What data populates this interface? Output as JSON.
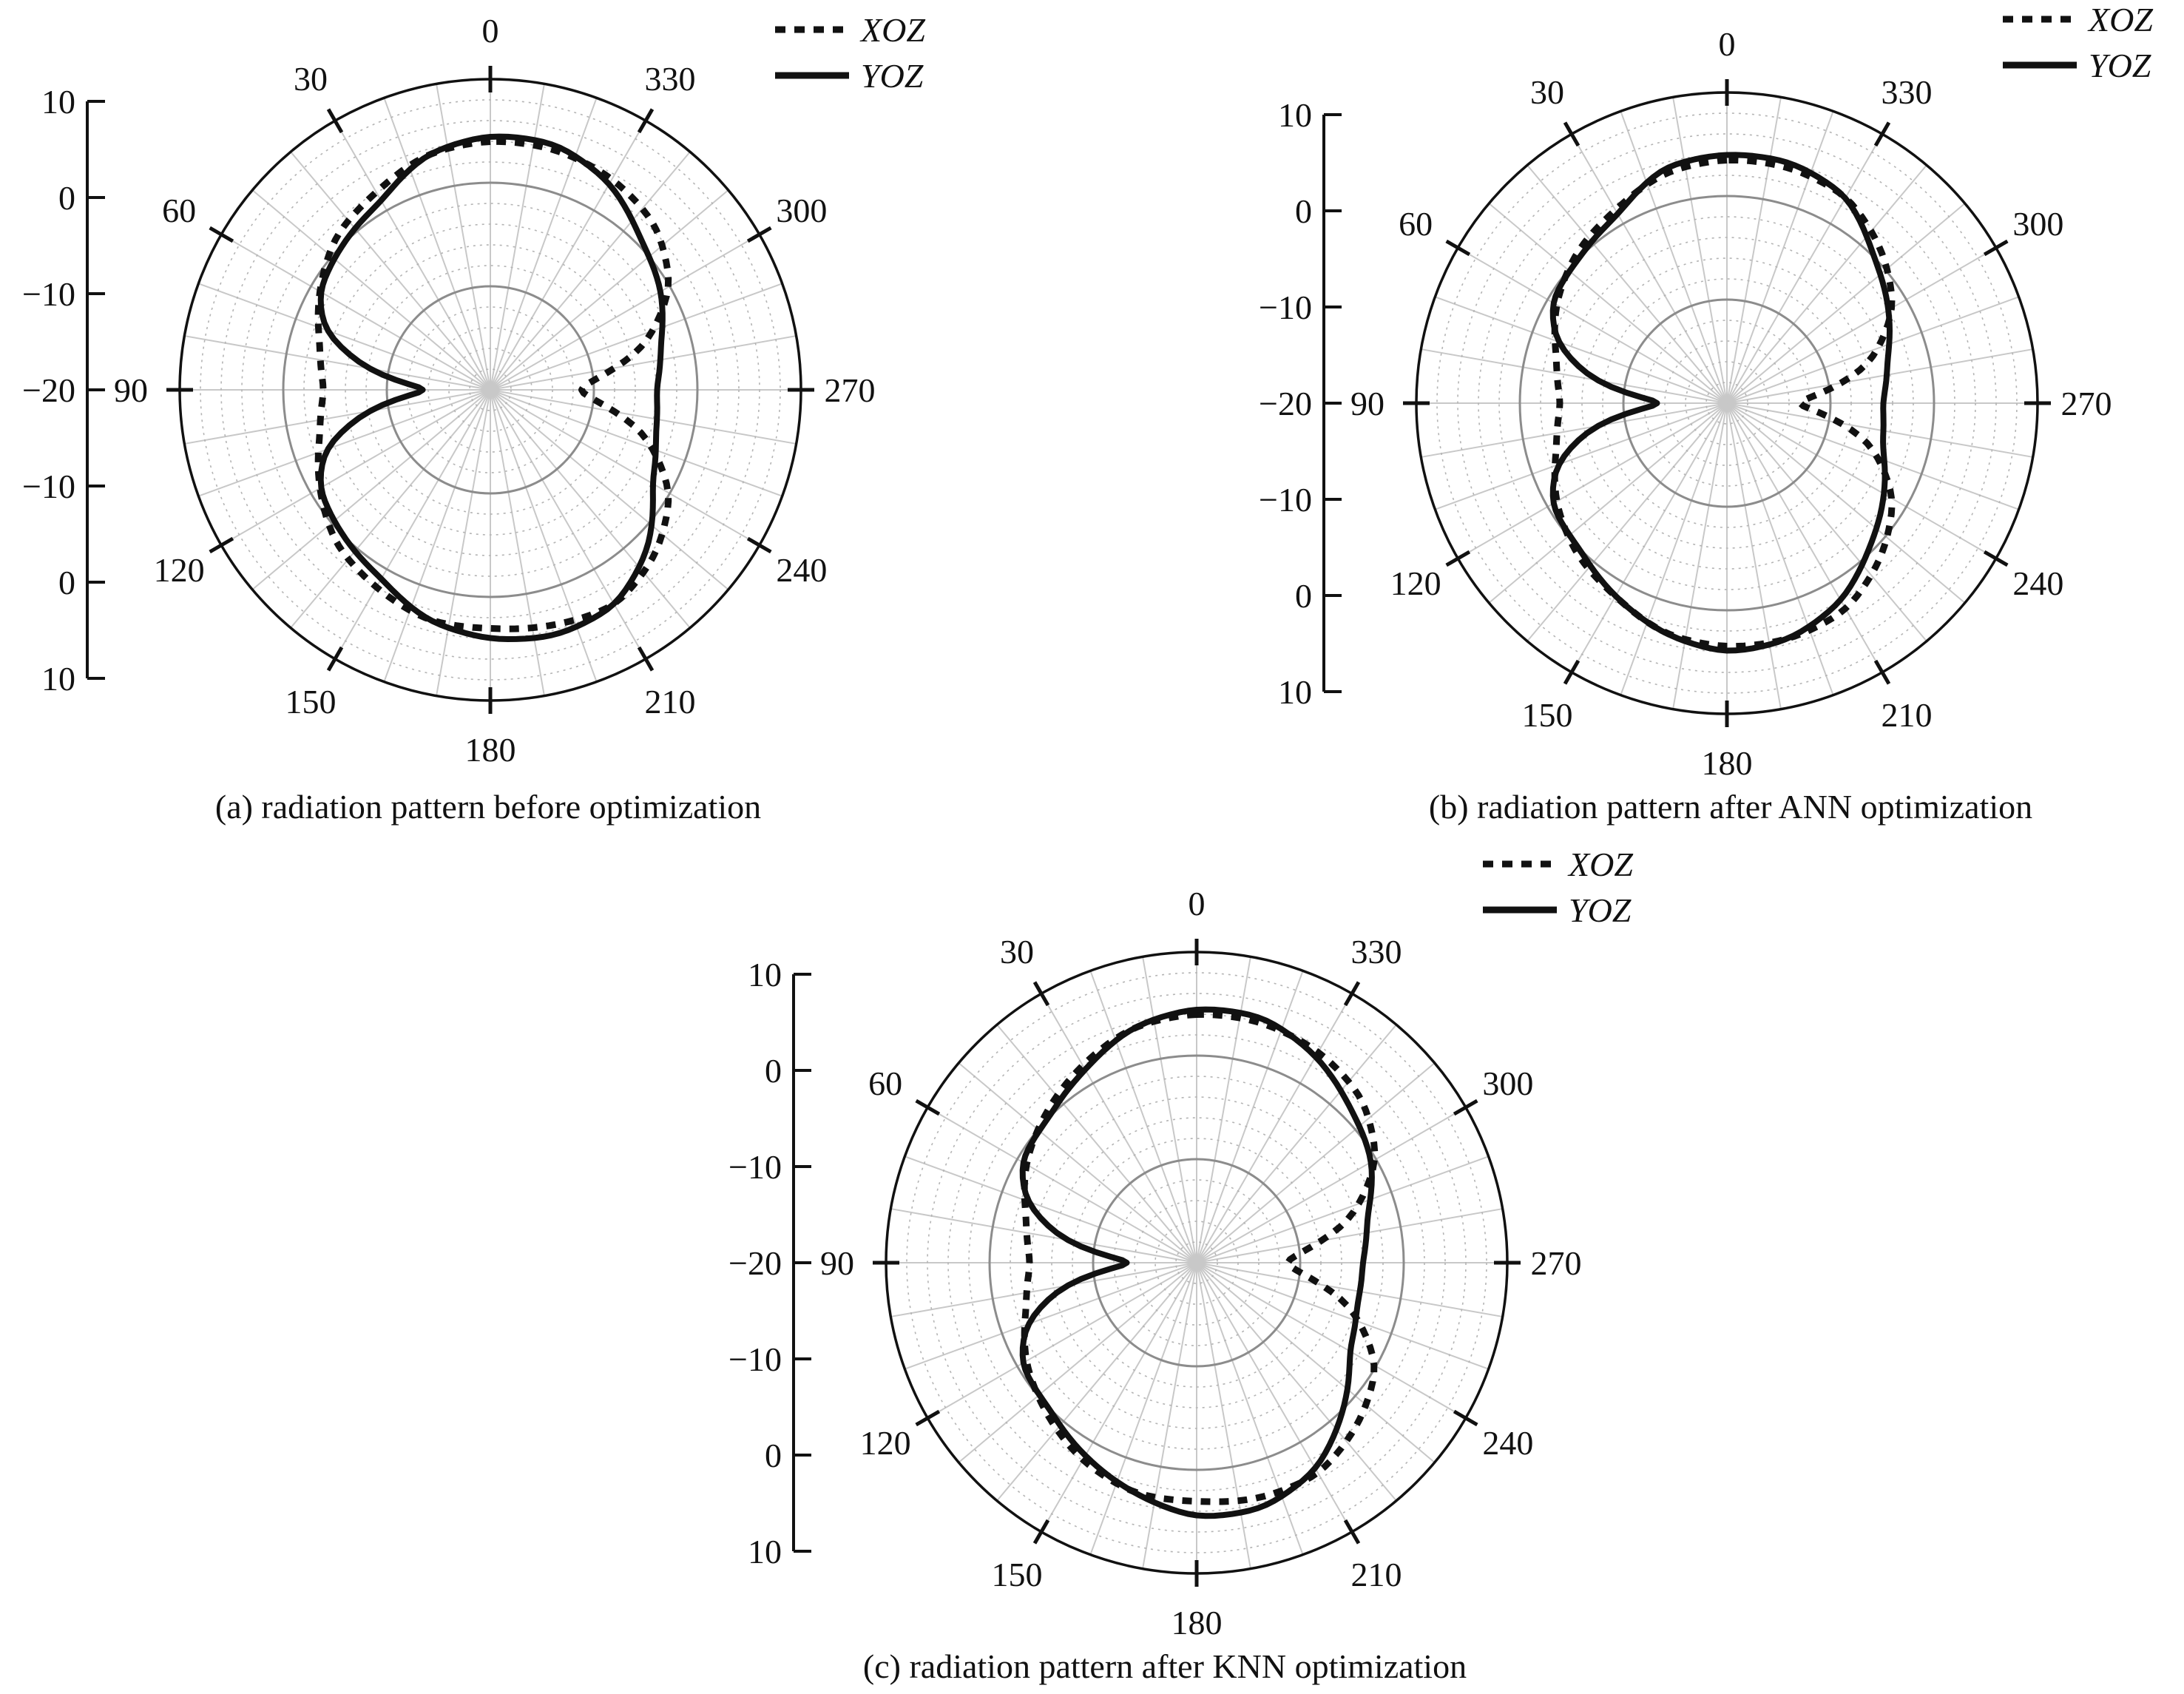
{
  "legend_names": {
    "XOZ": "XOZ",
    "YOZ": "YOZ"
  },
  "colors": {
    "curve": "#111111",
    "ring_major": "#8c8c8c",
    "ring_minor": "#b4b4b4",
    "spoke": "#c8c8c8"
  },
  "chart_data": [
    {
      "id": "a",
      "type": "polar-line",
      "caption": "(a) radiation pattern before optimization",
      "angle_labels": [
        "0",
        "30",
        "60",
        "90",
        "120",
        "150",
        "180",
        "210",
        "240",
        "270",
        "300",
        "330"
      ],
      "radial_axis_labels": [
        "10",
        "0",
        "−10",
        "−20",
        "−10",
        "0",
        "10"
      ],
      "rlim": [
        -20,
        10
      ],
      "angle_direction": "counterclockwise-from-top",
      "legend_position": "top-right",
      "series": [
        {
          "name": "XOZ",
          "style": "dashed",
          "theta": [
            0,
            15,
            30,
            45,
            60,
            75,
            90,
            105,
            120,
            135,
            150,
            165,
            180,
            195,
            210,
            225,
            240,
            255,
            262,
            270,
            278,
            285,
            300,
            315,
            330,
            345
          ],
          "gain": [
            4,
            3.5,
            2,
            1,
            -1,
            -3,
            -4,
            -3,
            -1,
            1,
            2,
            3,
            3,
            3.5,
            4,
            2.5,
            0,
            -5,
            -9,
            -12,
            -9,
            -5,
            0,
            2.5,
            3.5,
            4
          ]
        },
        {
          "name": "YOZ",
          "style": "solid",
          "theta": [
            0,
            15,
            30,
            45,
            60,
            70,
            80,
            90,
            100,
            110,
            120,
            135,
            150,
            165,
            180,
            195,
            210,
            225,
            240,
            255,
            270,
            285,
            300,
            315,
            330,
            345
          ],
          "gain": [
            4.5,
            3.5,
            1,
            0,
            -1,
            -3,
            -8,
            -15,
            -8,
            -3,
            -1,
            0,
            1,
            3,
            4,
            4.5,
            4,
            1.5,
            -2,
            -3.5,
            -4,
            -3,
            -1,
            0.5,
            3,
            4.5
          ]
        }
      ]
    },
    {
      "id": "b",
      "type": "polar-line",
      "caption": "(b) radiation pattern after ANN optimization",
      "angle_labels": [
        "0",
        "30",
        "60",
        "90",
        "120",
        "150",
        "180",
        "210",
        "240",
        "270",
        "300",
        "330"
      ],
      "radial_axis_labels": [
        "10",
        "0",
        "−10",
        "−20",
        "−10",
        "0",
        "10"
      ],
      "rlim": [
        -20,
        10
      ],
      "angle_direction": "counterclockwise-from-top",
      "legend_position": "top-right",
      "series": [
        {
          "name": "XOZ",
          "style": "dashed",
          "theta": [
            0,
            15,
            30,
            45,
            60,
            75,
            90,
            105,
            120,
            135,
            150,
            165,
            180,
            195,
            210,
            225,
            240,
            255,
            262,
            270,
            278,
            285,
            300,
            315,
            330,
            345
          ],
          "gain": [
            3.5,
            3,
            1.5,
            0.5,
            -1,
            -3,
            -4,
            -3,
            -1,
            0.5,
            1.5,
            3,
            3.5,
            3.5,
            3,
            1,
            -1.5,
            -6,
            -10,
            -14,
            -10,
            -6,
            -1.5,
            1,
            3,
            3.5
          ]
        },
        {
          "name": "YOZ",
          "style": "solid",
          "theta": [
            0,
            15,
            30,
            45,
            60,
            70,
            80,
            90,
            100,
            110,
            120,
            135,
            150,
            165,
            180,
            195,
            210,
            225,
            240,
            255,
            270,
            285,
            300,
            315,
            330,
            345
          ],
          "gain": [
            4,
            3.5,
            1,
            0,
            -0.5,
            -2.5,
            -7,
            -15,
            -7,
            -2.5,
            -0.5,
            0,
            1.5,
            3,
            4,
            3.5,
            2,
            -0.5,
            -2.5,
            -4.5,
            -5,
            -4,
            -2,
            0,
            3,
            4
          ]
        }
      ]
    },
    {
      "id": "c",
      "type": "polar-line",
      "caption": "(c) radiation pattern after KNN optimization",
      "angle_labels": [
        "0",
        "30",
        "60",
        "90",
        "120",
        "150",
        "180",
        "210",
        "240",
        "270",
        "300",
        "330"
      ],
      "radial_axis_labels": [
        "10",
        "0",
        "−10",
        "−20",
        "−10",
        "0",
        "10"
      ],
      "rlim": [
        -20,
        10
      ],
      "angle_direction": "counterclockwise-from-top",
      "legend_position": "top-right",
      "series": [
        {
          "name": "XOZ",
          "style": "dashed",
          "theta": [
            0,
            15,
            30,
            45,
            60,
            75,
            90,
            105,
            120,
            135,
            150,
            165,
            180,
            195,
            210,
            225,
            240,
            255,
            262,
            270,
            278,
            285,
            300,
            315,
            330,
            345
          ],
          "gain": [
            4,
            3.5,
            2,
            0.5,
            -1,
            -3,
            -4,
            -3,
            -1,
            0.5,
            2,
            3,
            3,
            3.5,
            3.5,
            2,
            0,
            -5,
            -9,
            -12,
            -9,
            -5,
            0,
            2.5,
            3.5,
            4
          ]
        },
        {
          "name": "YOZ",
          "style": "solid",
          "theta": [
            0,
            15,
            30,
            45,
            60,
            70,
            80,
            90,
            100,
            110,
            120,
            135,
            150,
            165,
            180,
            195,
            210,
            225,
            240,
            255,
            270,
            285,
            300,
            315,
            330,
            345
          ],
          "gain": [
            4.5,
            3.5,
            1.5,
            0,
            -0.5,
            -2.5,
            -7,
            -15,
            -7,
            -2.5,
            -0.5,
            0,
            1.5,
            3,
            4.5,
            4.5,
            3,
            0,
            -3,
            -4,
            -4,
            -3,
            -0.5,
            1,
            3,
            4.5
          ]
        }
      ]
    }
  ]
}
